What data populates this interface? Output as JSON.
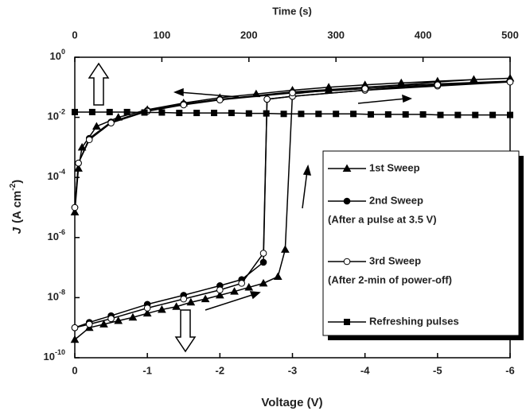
{
  "chart_data": {
    "type": "line",
    "x_label": "Voltage (V)",
    "x2_label": "Time (s)",
    "y_label": {
      "symbol": "J",
      "unit": "(A cm",
      "exponent": "-2",
      "close": ")"
    },
    "xlim": [
      0,
      -6
    ],
    "xticks": [
      0,
      -1,
      -2,
      -3,
      -4,
      -5,
      -6
    ],
    "x2lim": [
      0,
      500
    ],
    "x2ticks": [
      0,
      100,
      200,
      300,
      400,
      500
    ],
    "yscale": "log",
    "ylim": [
      1e-10,
      1
    ],
    "yticks": [
      {
        "value": 1,
        "label": "10",
        "exponent": "0"
      },
      {
        "value": 0.01,
        "label": "10",
        "exponent": "-2"
      },
      {
        "value": 0.0001,
        "label": "10",
        "exponent": "-4"
      },
      {
        "value": 1e-06,
        "label": "10",
        "exponent": "-6"
      },
      {
        "value": 1e-08,
        "label": "10",
        "exponent": "-8"
      },
      {
        "value": 1e-10,
        "label": "10",
        "exponent": "-10"
      }
    ],
    "grid": false,
    "legend": "right",
    "series": [
      {
        "name": "1st Sweep",
        "color": "#000000",
        "marker": "triangle",
        "x": [
          0,
          -0.2,
          -0.4,
          -0.6,
          -0.8,
          -1,
          -1.2,
          -1.4,
          -1.6,
          -1.8,
          -2,
          -2.2,
          -2.4,
          -2.6,
          -2.8,
          -2.9,
          -3,
          -3.5,
          -4,
          -4.5,
          -5,
          -5.5,
          -6,
          -5.5,
          -5,
          -4.5,
          -4,
          -3.5,
          -3,
          -2.5,
          -2,
          -1.5,
          -1,
          -0.6,
          -0.3,
          -0.1,
          -0.05,
          0
        ],
        "values": [
          4e-10,
          1e-09,
          1.3e-09,
          1.7e-09,
          2.2e-09,
          3e-09,
          4e-09,
          5e-09,
          7e-09,
          9e-09,
          1.2e-08,
          1.6e-08,
          2.2e-08,
          3e-08,
          5e-08,
          4e-07,
          0.06,
          0.08,
          0.1,
          0.12,
          0.15,
          0.18,
          0.2,
          0.18,
          0.16,
          0.14,
          0.12,
          0.1,
          0.08,
          0.06,
          0.045,
          0.03,
          0.018,
          0.01,
          0.005,
          0.001,
          0.0002,
          7e-06
        ]
      },
      {
        "name": "2nd Sweep",
        "description": "(After a pulse at 3.5 V)",
        "color": "#000000",
        "marker": "circle",
        "x": [
          0,
          -0.2,
          -0.5,
          -1,
          -1.5,
          -2,
          -2.3,
          -2.6,
          -2.65,
          -3,
          -4,
          -5,
          -6,
          -5,
          -4,
          -3,
          -2,
          -1.5,
          -1,
          -0.5,
          -0.2,
          -0.05,
          0
        ],
        "values": [
          1e-09,
          1.5e-09,
          2.5e-09,
          6e-09,
          1.2e-08,
          2.5e-08,
          4e-08,
          1.5e-07,
          0.04,
          0.05,
          0.08,
          0.12,
          0.16,
          0.13,
          0.1,
          0.07,
          0.04,
          0.028,
          0.017,
          0.007,
          0.002,
          0.0003,
          1e-05
        ]
      },
      {
        "name": "3rd Sweep",
        "description": "(After 2-min of power-off)",
        "color": "#000000",
        "marker": "open-circle",
        "x": [
          0,
          -0.2,
          -0.5,
          -1,
          -1.5,
          -2,
          -2.3,
          -2.6,
          -2.65,
          -3,
          -4,
          -5,
          -6,
          -5,
          -4,
          -3,
          -2,
          -1.5,
          -1,
          -0.5,
          -0.2,
          -0.05,
          0
        ],
        "values": [
          1e-09,
          1.3e-09,
          2e-09,
          4.5e-09,
          9e-09,
          1.8e-08,
          3e-08,
          3e-07,
          0.04,
          0.05,
          0.08,
          0.11,
          0.15,
          0.12,
          0.09,
          0.065,
          0.038,
          0.026,
          0.016,
          0.0065,
          0.0018,
          0.0003,
          1e-05
        ]
      },
      {
        "name": "Refreshing pulses",
        "color": "#000000",
        "marker": "square",
        "axis": "x2",
        "x": [
          0,
          20,
          40,
          60,
          80,
          100,
          120,
          140,
          160,
          180,
          200,
          220,
          240,
          260,
          280,
          300,
          320,
          340,
          360,
          380,
          400,
          420,
          440,
          460,
          480,
          500
        ],
        "values": [
          0.015,
          0.015,
          0.015,
          0.015,
          0.0145,
          0.0145,
          0.014,
          0.014,
          0.014,
          0.014,
          0.0135,
          0.0135,
          0.013,
          0.013,
          0.013,
          0.013,
          0.013,
          0.0125,
          0.0125,
          0.0125,
          0.0125,
          0.012,
          0.012,
          0.012,
          0.012,
          0.012
        ]
      }
    ]
  }
}
